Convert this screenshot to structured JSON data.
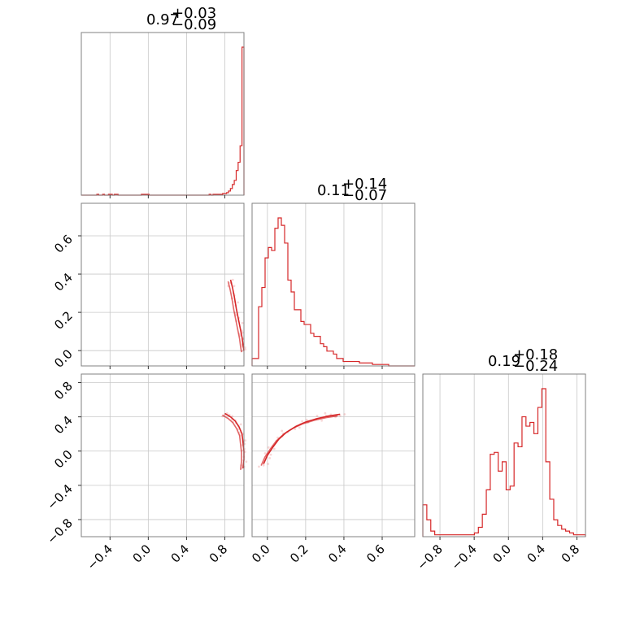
{
  "colors": {
    "accent": "#d62728",
    "frame": "#808080",
    "grid": "#c8c8c8"
  },
  "chart_data": {
    "type": "corner",
    "parameters": [
      {
        "range": [
          -0.7,
          1.0
        ],
        "ticks": [
          -0.4,
          0.0,
          0.4,
          0.8
        ],
        "tick_labels": [
          "−0.4",
          "0.0",
          "0.4",
          "0.8"
        ]
      },
      {
        "range": [
          -0.08,
          0.77
        ],
        "ticks": [
          0.0,
          0.2,
          0.4,
          0.6
        ],
        "tick_labels": [
          "0.0",
          "0.2",
          "0.4",
          "0.6"
        ]
      },
      {
        "range": [
          -1.0,
          0.9
        ],
        "ticks": [
          -0.8,
          -0.4,
          0.0,
          0.4,
          0.8
        ],
        "tick_labels": [
          "−0.8",
          "−0.4",
          "0.0",
          "0.4",
          "0.8"
        ]
      }
    ],
    "titles": [
      {
        "median": "0.97",
        "plus": "+0.03",
        "minus": "−0.09"
      },
      {
        "median": "0.11",
        "plus": "+0.14",
        "minus": "−0.07"
      },
      {
        "median": "0.19",
        "plus": "+0.18",
        "minus": "−0.24"
      }
    ],
    "histograms": [
      {
        "edges": [
          -0.7,
          1.0
        ],
        "counts": [
          0,
          0,
          0,
          0,
          0,
          0,
          0,
          0,
          1,
          0,
          0,
          1,
          0,
          0,
          1,
          1,
          0,
          1,
          1,
          0,
          0,
          0,
          0,
          0,
          0,
          0,
          0,
          0,
          0,
          0,
          0,
          1,
          1,
          1,
          1,
          0,
          0,
          0,
          0,
          0,
          0,
          0,
          0,
          0,
          0,
          0,
          0,
          0,
          0,
          0,
          0,
          0,
          0,
          0,
          0,
          0,
          0,
          0,
          0,
          0,
          0,
          0,
          0,
          0,
          0,
          0,
          1,
          0,
          1,
          1,
          1,
          1,
          1,
          2,
          2,
          3,
          5,
          8,
          13,
          18,
          30,
          40,
          60,
          180
        ]
      },
      {
        "edges": [
          -0.08,
          0.77
        ],
        "counts": [
          5,
          5,
          40,
          53,
          73,
          80,
          78,
          93,
          100,
          95,
          83,
          58,
          50,
          38,
          38,
          30,
          28,
          28,
          22,
          20,
          20,
          15,
          13,
          10,
          10,
          8,
          5,
          5,
          3,
          3,
          3,
          3,
          3,
          2,
          2,
          2,
          2,
          1,
          1,
          1,
          1,
          1,
          0,
          0,
          0,
          0,
          0,
          0,
          0,
          0
        ]
      },
      {
        "edges": [
          -1.0,
          0.9
        ],
        "counts": [
          17,
          9,
          3,
          1,
          1,
          1,
          1,
          1,
          1,
          1,
          1,
          1,
          1,
          2,
          5,
          12,
          25,
          44,
          45,
          35,
          40,
          25,
          27,
          50,
          48,
          64,
          59,
          61,
          55,
          69,
          79,
          40,
          20,
          9,
          6,
          4,
          3,
          2,
          1,
          1,
          1
        ]
      }
    ],
    "pairs": [
      {
        "x_param": 0,
        "y_param": 1,
        "contour": [
          [
            0.86,
            0.37
          ],
          [
            0.88,
            0.33
          ],
          [
            0.9,
            0.28
          ],
          [
            0.92,
            0.22
          ],
          [
            0.94,
            0.17
          ],
          [
            0.96,
            0.12
          ],
          [
            0.98,
            0.07
          ],
          [
            0.99,
            0.03
          ],
          [
            1.0,
            0.0
          ]
        ]
      },
      {
        "x_param": 0,
        "y_param": 2,
        "contour": [
          [
            0.8,
            0.44
          ],
          [
            0.86,
            0.4
          ],
          [
            0.91,
            0.35
          ],
          [
            0.95,
            0.28
          ],
          [
            0.98,
            0.2
          ],
          [
            0.99,
            0.1
          ],
          [
            1.0,
            0.0
          ],
          [
            1.0,
            -0.1
          ],
          [
            0.99,
            -0.2
          ]
        ]
      },
      {
        "x_param": 1,
        "y_param": 2,
        "contour": [
          [
            -0.02,
            -0.15
          ],
          [
            0.0,
            -0.05
          ],
          [
            0.03,
            0.05
          ],
          [
            0.06,
            0.14
          ],
          [
            0.1,
            0.22
          ],
          [
            0.15,
            0.29
          ],
          [
            0.2,
            0.34
          ],
          [
            0.26,
            0.38
          ],
          [
            0.32,
            0.41
          ],
          [
            0.38,
            0.43
          ]
        ]
      }
    ]
  }
}
